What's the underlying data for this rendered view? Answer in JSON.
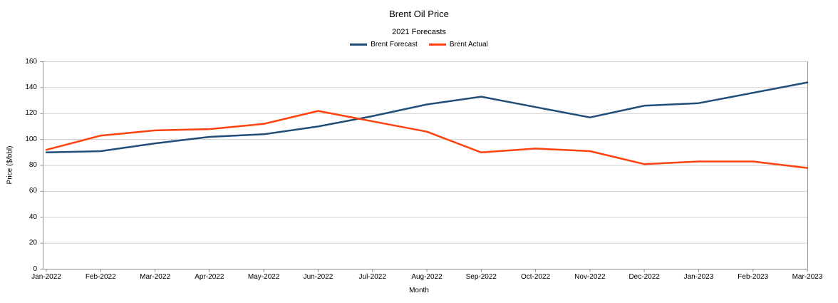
{
  "chart_data": {
    "type": "line",
    "title": "Brent Oil Price",
    "subtitle": "2021 Forecasts",
    "xlabel": "Month",
    "ylabel": "Price ($/bbl)",
    "ylim": [
      0,
      160
    ],
    "yticks": [
      0,
      20,
      40,
      60,
      80,
      100,
      120,
      140,
      160
    ],
    "grid": true,
    "legend_position": "top",
    "categories": [
      "Jan-2022",
      "Feb-2022",
      "Mar-2022",
      "Apr-2022",
      "May-2022",
      "Jun-2022",
      "Jul-2022",
      "Aug-2022",
      "Sep-2022",
      "Oct-2022",
      "Nov-2022",
      "Dec-2022",
      "Jan-2023",
      "Feb-2023",
      "Mar-2023"
    ],
    "series": [
      {
        "name": "Brent Forecast",
        "color": "#1f4e79",
        "values": [
          90,
          91,
          97,
          102,
          104,
          110,
          118,
          127,
          133,
          125,
          117,
          126,
          128,
          136,
          144
        ]
      },
      {
        "name": "Brent Actual",
        "color": "#ff420e",
        "values": [
          92,
          103,
          107,
          108,
          112,
          122,
          114,
          106,
          90,
          93,
          91,
          81,
          83,
          83,
          78
        ]
      }
    ],
    "colors": {
      "background": "#ffffff",
      "gridline": "#d0d0d0",
      "axis": "#8e8e8e",
      "text": "#000000"
    }
  }
}
